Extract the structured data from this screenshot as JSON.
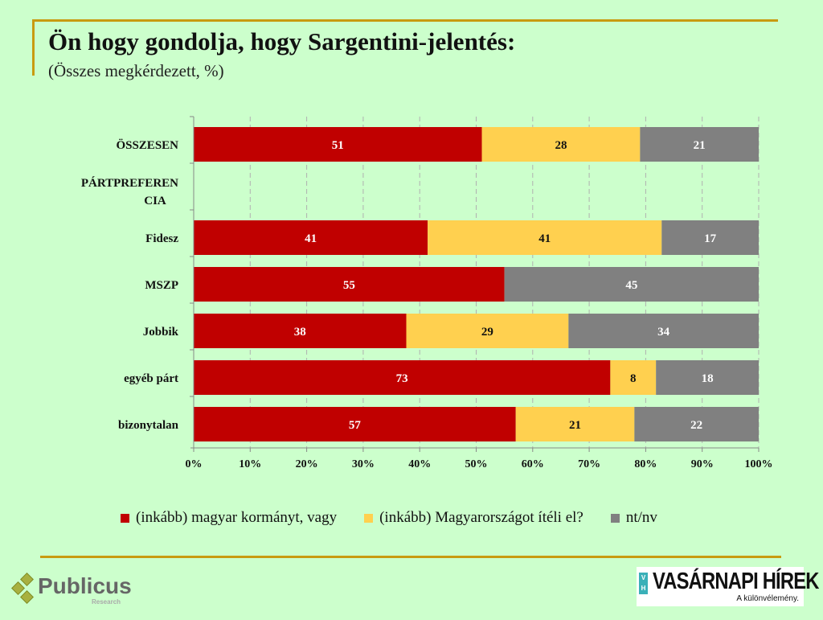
{
  "title": "Ön hogy gondolja, hogy Sargentini-jelentés:",
  "subtitle": "(Összes megkérdezett, %)",
  "chart_data": {
    "type": "bar",
    "orientation": "horizontal",
    "stacked": "percent",
    "categories": [
      "ÖSSZESEN",
      "PÁRTPREFERENCIA",
      "Fidesz",
      "MSZP",
      "Jobbik",
      "egyéb párt",
      "bizonytalan"
    ],
    "category_labels": [
      "ÖSSZESEN",
      "PÁRTPREFEREN CIA",
      "Fidesz",
      "MSZP",
      "Jobbik",
      "egyéb párt",
      "bizonytalan"
    ],
    "series": [
      {
        "name": "(inkább) magyar kormányt, vagy",
        "color": "#c00000",
        "values": [
          51,
          null,
          41,
          55,
          38,
          73,
          57
        ]
      },
      {
        "name": "(inkább) Magyarországot ítéli el?",
        "color": "#ffd04f",
        "values": [
          28,
          null,
          41,
          0,
          29,
          8,
          21
        ]
      },
      {
        "name": "nt/nv",
        "color": "#808080",
        "values": [
          21,
          null,
          17,
          45,
          34,
          18,
          22
        ]
      }
    ],
    "xlim": [
      0,
      100
    ],
    "xticks": [
      "0%",
      "10%",
      "20%",
      "30%",
      "40%",
      "50%",
      "60%",
      "70%",
      "80%",
      "90%",
      "100%"
    ],
    "grid": true,
    "legend": "bottom"
  },
  "logos": {
    "publicus": {
      "name": "Publicus",
      "sub": "Research"
    },
    "vasarnapi": {
      "vh": [
        "V",
        "H"
      ],
      "name": "VASÁRNAPI HÍREK",
      "tagline": "A különvélemény."
    }
  }
}
